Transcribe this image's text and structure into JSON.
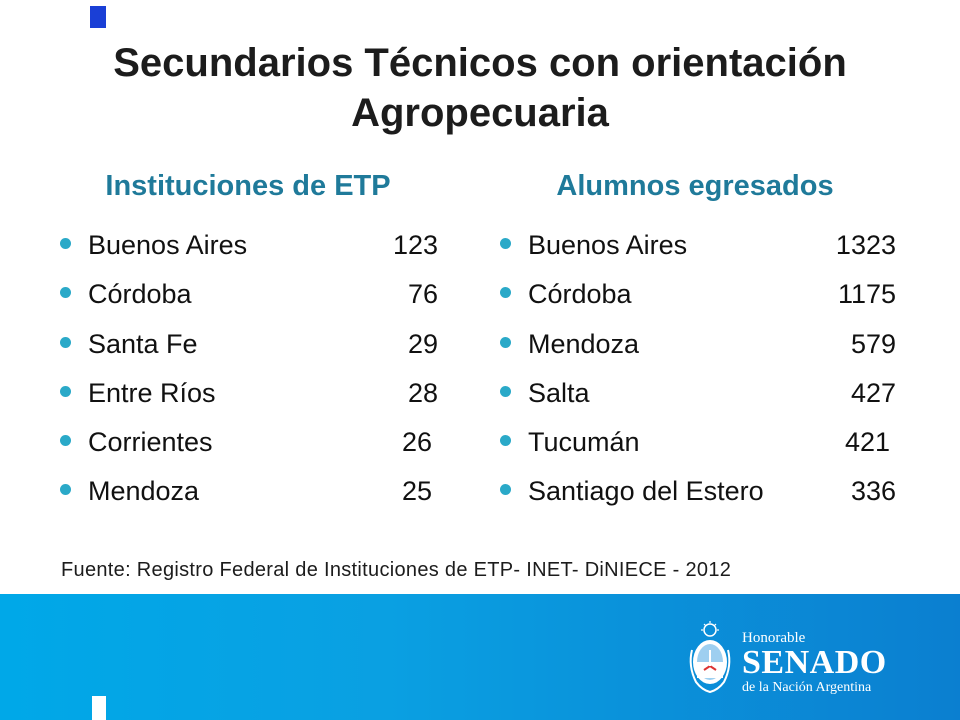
{
  "slide": {
    "title_line1": "Secundarios Técnicos con orientación",
    "title_line2": "Agropecuaria"
  },
  "left_column": {
    "heading": "Instituciones de ETP",
    "items": [
      {
        "name": "Buenos Aires",
        "value": "123"
      },
      {
        "name": "Córdoba",
        "value": "76"
      },
      {
        "name": "Santa Fe",
        "value": "29"
      },
      {
        "name": "Entre Ríos",
        "value": "28"
      },
      {
        "name": "Corrientes",
        "value": "26"
      },
      {
        "name": "Mendoza",
        "value": "25"
      }
    ]
  },
  "right_column": {
    "heading": "Alumnos egresados",
    "items": [
      {
        "name": "Buenos Aires",
        "value": "1323"
      },
      {
        "name": "Córdoba",
        "value": "1175"
      },
      {
        "name": "Mendoza",
        "value": "579"
      },
      {
        "name": "Salta",
        "value": "427"
      },
      {
        "name": "Tucumán",
        "value": "421"
      },
      {
        "name": "Santiago del Estero",
        "value": "336"
      }
    ]
  },
  "source": "Fuente: Registro Federal de Instituciones de ETP- INET- DiNIECE - 2012",
  "logo": {
    "line1": "Honorable",
    "line2": "SENADO",
    "line3": "de la Nación Argentina"
  },
  "colors": {
    "heading": "#1f7a9a",
    "bullet": "#2aa9c8",
    "footer_band": "#0a9fe0",
    "accent": "#1a3fd6"
  }
}
